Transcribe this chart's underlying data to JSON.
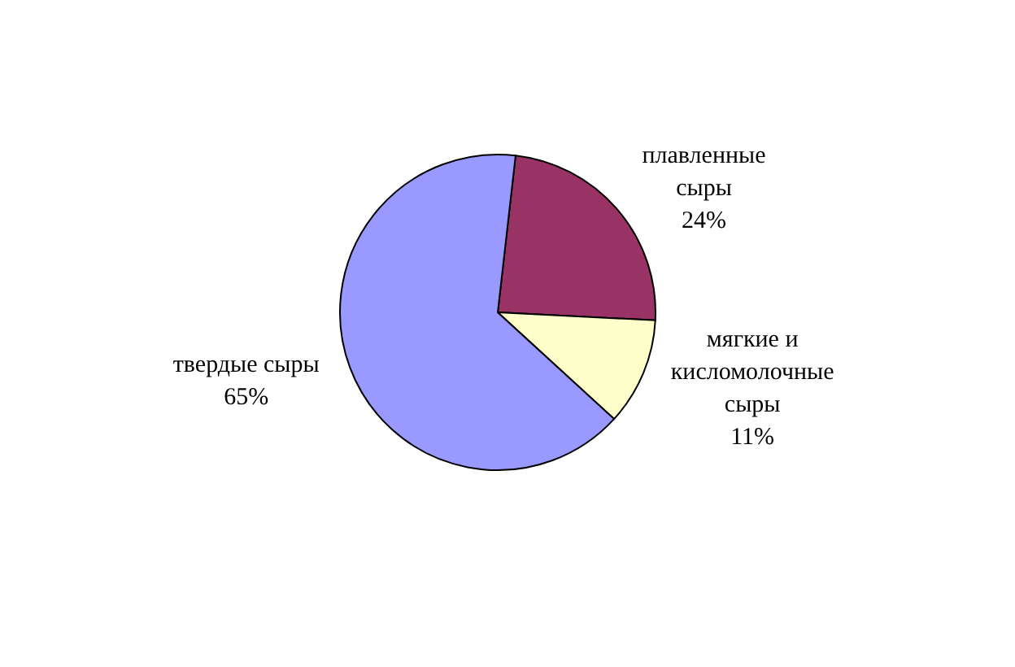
{
  "chart_data": {
    "type": "pie",
    "categories": [
      "плавленные сыры",
      "мягкие и кисломолочные сыры",
      "твердые сыры"
    ],
    "values": [
      24,
      11,
      65
    ],
    "colors": [
      "#993366",
      "#ffffcc",
      "#9999ff"
    ],
    "value_labels": [
      "24%",
      "11%",
      "65%"
    ]
  }
}
